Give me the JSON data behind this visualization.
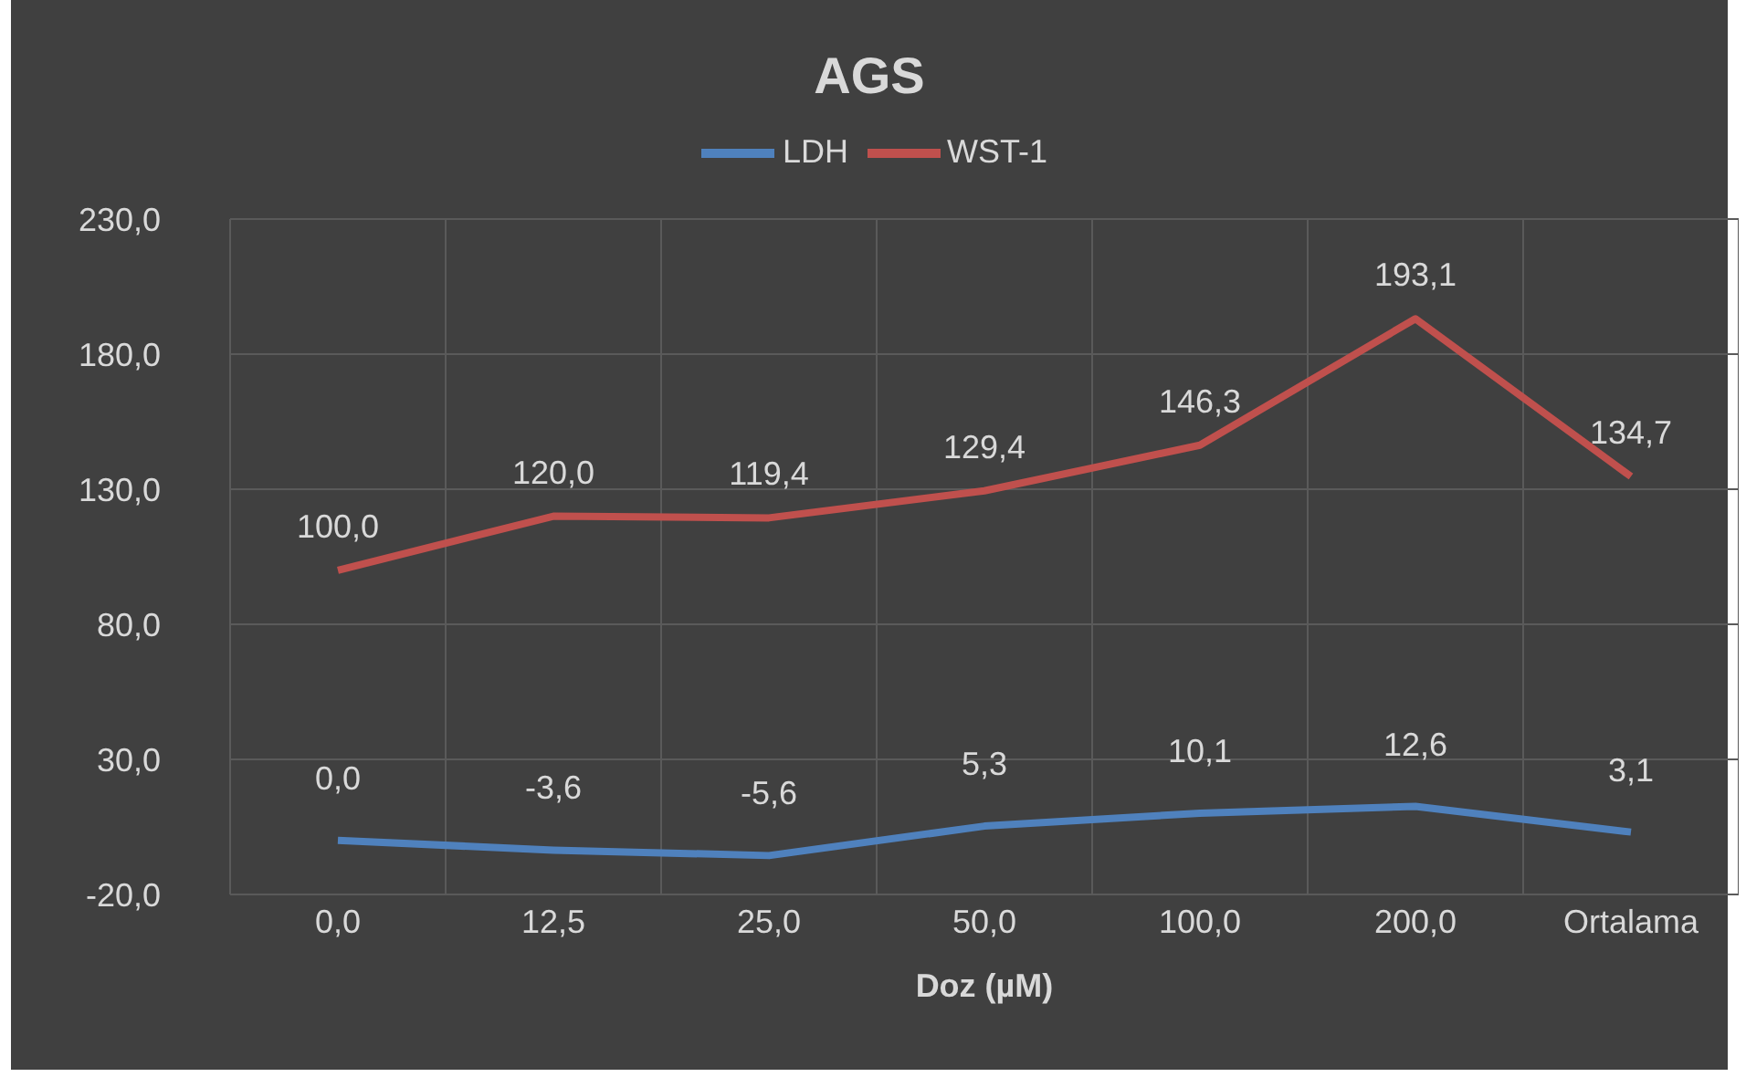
{
  "chart_data": {
    "type": "line",
    "title": "AGS",
    "xlabel": "Doz (µM)",
    "categories": [
      "0,0",
      "12,5",
      "25,0",
      "50,0",
      "100,0",
      "200,0",
      "Ortalama"
    ],
    "series": [
      {
        "name": "LDH",
        "color": "#4f81bd",
        "values": [
          0.0,
          -3.6,
          -5.6,
          5.3,
          10.1,
          12.6,
          3.1
        ],
        "value_labels": [
          "0,0",
          "-3,6",
          "-5,6",
          "5,3",
          "10,1",
          "12,6",
          "3,1"
        ]
      },
      {
        "name": "WST-1",
        "color": "#c0504d",
        "values": [
          100.0,
          120.0,
          119.4,
          129.4,
          146.3,
          193.1,
          134.7
        ],
        "value_labels": [
          "100,0",
          "120,0",
          "119,4",
          "129,4",
          "146,3",
          "193,1",
          "134,7"
        ]
      }
    ],
    "ylim": [
      -20,
      230
    ],
    "yticks": [
      {
        "value": -20,
        "label": "-20,0"
      },
      {
        "value": 30,
        "label": "30,0"
      },
      {
        "value": 80,
        "label": "80,0"
      },
      {
        "value": 130,
        "label": "130,0"
      },
      {
        "value": 180,
        "label": "180,0"
      },
      {
        "value": 230,
        "label": "230,0"
      }
    ],
    "grid": true,
    "legend": "top",
    "marker": "none",
    "line_style": "solid"
  }
}
